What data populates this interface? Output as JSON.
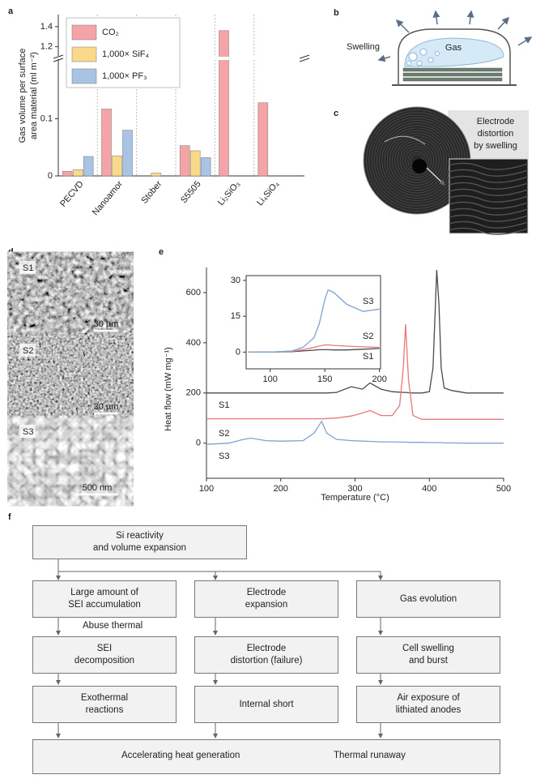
{
  "panel_labels": [
    "a",
    "b",
    "c",
    "d",
    "e",
    "f"
  ],
  "chart_data": [
    {
      "type": "bar",
      "ylabel": [
        "Gas volume per surface",
        "area material (ml m⁻²)"
      ],
      "categories": [
        "PECVD",
        "Nanoamor",
        "Stober",
        "S5505",
        "Li₂SiO₃",
        "Li₄SiO₄"
      ],
      "series": [
        {
          "name": "CO₂",
          "color": "#f4a3a6",
          "values": [
            0.008,
            0.117,
            null,
            0.053,
            1.36,
            0.128
          ]
        },
        {
          "name": "1,000× SiF₄",
          "color": "#fbd98b",
          "values": [
            0.011,
            0.035,
            0.005,
            0.044,
            null,
            null
          ]
        },
        {
          "name": "1,000× PF₃",
          "color": "#a8c3e3",
          "values": [
            0.034,
            0.08,
            null,
            0.032,
            null,
            null
          ]
        }
      ],
      "ylim": [
        0,
        0.2
      ],
      "yticks": [
        0,
        0.1
      ],
      "upper_ylim": [
        1.1,
        1.52
      ],
      "upper_yticks": [
        1.2,
        1.4
      ],
      "axis_break": true,
      "legend": "upper left"
    },
    {
      "type": "line",
      "xlabel": "Temperature (°C)",
      "ylabel": "Heat flow (mW mg⁻¹)",
      "x": [
        100,
        130,
        150,
        160,
        180,
        200,
        230,
        245,
        255,
        262,
        275,
        295,
        310,
        320,
        335,
        350,
        360,
        365,
        368,
        372,
        378,
        390,
        400,
        405,
        410,
        413,
        416,
        420,
        430,
        450,
        500
      ],
      "series": [
        {
          "name": "S1",
          "color": "#4a4a4a",
          "values": [
            200,
            200,
            200,
            200,
            200,
            200,
            200,
            200,
            200,
            200,
            202,
            225,
            215,
            240,
            215,
            205,
            203,
            202,
            202,
            201,
            200,
            200,
            205,
            300,
            690,
            550,
            300,
            220,
            210,
            200,
            200
          ]
        },
        {
          "name": "S2",
          "color": "#e8787a",
          "values": [
            97,
            97,
            97,
            97,
            97,
            97,
            97,
            97,
            97,
            98,
            100,
            108,
            120,
            130,
            110,
            110,
            150,
            300,
            474,
            250,
            110,
            95,
            95,
            95,
            95,
            95,
            95,
            95,
            95,
            95,
            95
          ]
        },
        {
          "name": "S3",
          "color": "#7fa3d0",
          "values": [
            -5,
            0,
            15,
            20,
            10,
            8,
            10,
            40,
            87,
            40,
            15,
            10,
            8,
            7,
            5,
            5,
            4,
            4,
            4,
            3,
            3,
            3,
            2,
            2,
            2,
            2,
            2,
            1,
            1,
            0,
            0
          ]
        }
      ],
      "xlim": [
        100,
        500
      ],
      "xticks": [
        100,
        200,
        300,
        400,
        500
      ],
      "ylim": [
        -140,
        700
      ],
      "yticks": [
        0,
        200,
        400,
        600
      ]
    },
    {
      "type": "line",
      "inset": true,
      "x": [
        80,
        100,
        120,
        130,
        140,
        145,
        150,
        153,
        158,
        170,
        185,
        200
      ],
      "series": [
        {
          "name": "S1",
          "color": "#4a4a4a",
          "values": [
            0,
            0,
            0.2,
            0.5,
            0.8,
            1,
            1,
            1,
            0.9,
            0.9,
            1.2,
            1.5
          ]
        },
        {
          "name": "S2",
          "color": "#e8787a",
          "values": [
            0,
            0,
            0.3,
            1,
            2,
            2.5,
            3,
            3,
            2.8,
            2.5,
            2.2,
            2
          ]
        },
        {
          "name": "S3",
          "color": "#7fa3d0",
          "values": [
            0,
            0,
            0.5,
            2,
            6,
            12,
            22,
            26,
            25,
            20,
            17,
            18
          ]
        }
      ],
      "xlim": [
        78,
        201
      ],
      "xticks": [
        100,
        150,
        200
      ],
      "ylim": [
        -7,
        32
      ],
      "yticks": [
        0,
        15,
        30
      ]
    }
  ],
  "panel_b": {
    "labels": [
      "Swelling",
      "Gas"
    ]
  },
  "panel_c": {
    "annotation": [
      "Electrode",
      "distortion",
      "by swelling"
    ]
  },
  "panel_d": {
    "samples": [
      {
        "label": "S1",
        "scale_bar": "30 µm"
      },
      {
        "label": "S2",
        "scale_bar": "30 µm"
      },
      {
        "label": "S3",
        "scale_bar": "500 nm"
      }
    ]
  },
  "panel_f": {
    "nodes": [
      "Si reactivity\nand volume expansion",
      "Large amount of\nSEI accumulation",
      "Electrode\nexpansion",
      "Gas evolution",
      "SEI\ndecomposition",
      "Electrode\ndistortion (failure)",
      "Cell swelling\nand burst",
      "Exothermal\nreactions",
      "Internal short",
      "Air exposure of\nlithiated anodes"
    ],
    "note": "Abuse thermal",
    "final": [
      "Accelerating heat generation",
      "Thermal runaway"
    ]
  }
}
